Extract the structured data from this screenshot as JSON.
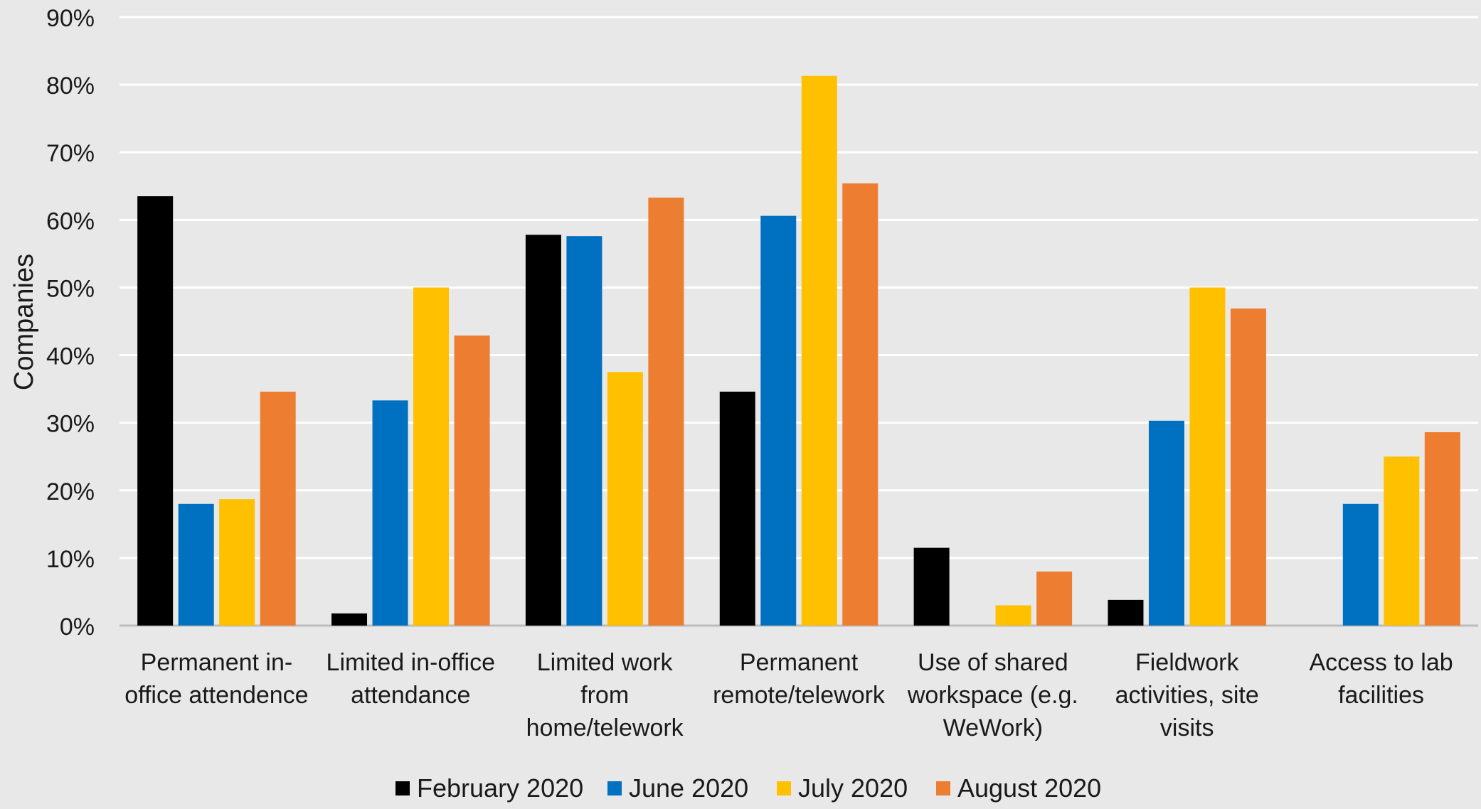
{
  "chart_data": {
    "type": "bar",
    "title": "",
    "xlabel": "",
    "ylabel": "Companies",
    "ylim": [
      0,
      90
    ],
    "y_ticks": [
      "0%",
      "10%",
      "20%",
      "30%",
      "40%",
      "50%",
      "60%",
      "70%",
      "80%",
      "90%"
    ],
    "grid": true,
    "legend_position": "bottom",
    "categories": [
      [
        "Permanent in-",
        "office attendence"
      ],
      [
        "Limited in-office",
        "attendance"
      ],
      [
        "Limited work",
        "from",
        "home/telework"
      ],
      [
        "Permanent",
        "remote/telework"
      ],
      [
        "Use of shared",
        "workspace (e.g.",
        "WeWork)"
      ],
      [
        "Fieldwork",
        "activities, site",
        "visits"
      ],
      [
        "Access to lab",
        "facilities"
      ]
    ],
    "series": [
      {
        "name": "February 2020",
        "color": "#000000",
        "values": [
          63.5,
          1.8,
          57.8,
          34.6,
          11.5,
          3.8,
          0
        ]
      },
      {
        "name": "June 2020",
        "color": "#0070c0",
        "values": [
          18.0,
          33.3,
          57.6,
          60.6,
          0,
          30.3,
          18.0
        ]
      },
      {
        "name": "July 2020",
        "color": "#ffc000",
        "values": [
          18.7,
          50.0,
          37.5,
          81.3,
          3.0,
          50.0,
          25.0
        ]
      },
      {
        "name": "August 2020",
        "color": "#ed7d31",
        "values": [
          34.6,
          42.9,
          63.3,
          65.4,
          8.0,
          46.9,
          28.6
        ]
      }
    ]
  }
}
